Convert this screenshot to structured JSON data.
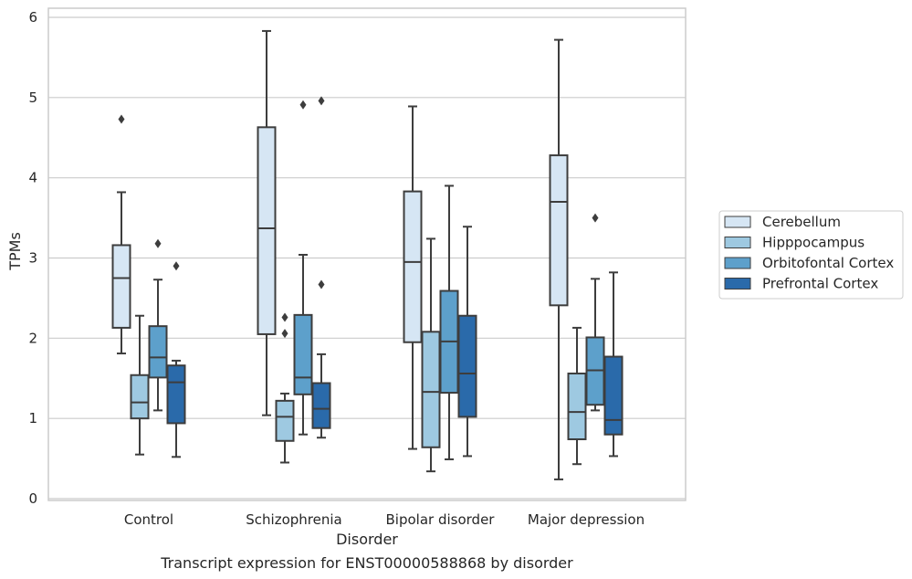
{
  "caption": "Transcript expression for ENST00000588868 by disorder",
  "chart_data": {
    "type": "box",
    "title": "",
    "xlabel": "Disorder",
    "ylabel": "TPMs",
    "ylim": [
      0,
      6.1
    ],
    "yticks": [
      0,
      1,
      2,
      3,
      4,
      5,
      6
    ],
    "grid": true,
    "legend_position": "right",
    "categories": [
      "Control",
      "Schizophrenia",
      "Bipolar disorder",
      "Major depression"
    ],
    "series": [
      {
        "name": "Cerebellum",
        "color": "#d6e6f4",
        "boxes": [
          {
            "whislo": 1.81,
            "q1": 2.13,
            "med": 2.75,
            "q3": 3.16,
            "whishi": 3.82,
            "fliers": [
              4.73
            ]
          },
          {
            "whislo": 1.04,
            "q1": 2.05,
            "med": 3.37,
            "q3": 4.63,
            "whishi": 5.83,
            "fliers": []
          },
          {
            "whislo": 0.62,
            "q1": 1.95,
            "med": 2.95,
            "q3": 3.83,
            "whishi": 4.89,
            "fliers": []
          },
          {
            "whislo": 0.24,
            "q1": 2.41,
            "med": 3.7,
            "q3": 4.28,
            "whishi": 5.72,
            "fliers": []
          }
        ]
      },
      {
        "name": "Hipppocampus",
        "color": "#9ec9e1",
        "boxes": [
          {
            "whislo": 0.55,
            "q1": 1.0,
            "med": 1.2,
            "q3": 1.54,
            "whishi": 2.28,
            "fliers": []
          },
          {
            "whislo": 0.45,
            "q1": 0.72,
            "med": 1.02,
            "q3": 1.22,
            "whishi": 1.31,
            "fliers": [
              2.06,
              2.26
            ]
          },
          {
            "whislo": 0.34,
            "q1": 0.64,
            "med": 1.33,
            "q3": 2.08,
            "whishi": 3.24,
            "fliers": []
          },
          {
            "whislo": 0.43,
            "q1": 0.74,
            "med": 1.08,
            "q3": 1.56,
            "whishi": 2.13,
            "fliers": []
          }
        ]
      },
      {
        "name": "Orbitofontal Cortex",
        "color": "#5da0cb",
        "boxes": [
          {
            "whislo": 1.1,
            "q1": 1.51,
            "med": 1.76,
            "q3": 2.15,
            "whishi": 2.73,
            "fliers": [
              3.18
            ]
          },
          {
            "whislo": 0.8,
            "q1": 1.3,
            "med": 1.51,
            "q3": 2.29,
            "whishi": 3.04,
            "fliers": [
              4.91
            ]
          },
          {
            "whislo": 0.49,
            "q1": 1.32,
            "med": 1.96,
            "q3": 2.59,
            "whishi": 3.9,
            "fliers": []
          },
          {
            "whislo": 1.1,
            "q1": 1.17,
            "med": 1.6,
            "q3": 2.01,
            "whishi": 2.74,
            "fliers": [
              3.5
            ]
          }
        ]
      },
      {
        "name": "Prefrontal Cortex",
        "color": "#2a6aaa",
        "boxes": [
          {
            "whislo": 0.52,
            "q1": 0.94,
            "med": 1.45,
            "q3": 1.66,
            "whishi": 1.72,
            "fliers": [
              2.9
            ]
          },
          {
            "whislo": 0.76,
            "q1": 0.88,
            "med": 1.12,
            "q3": 1.44,
            "whishi": 1.8,
            "fliers": [
              2.67,
              4.96
            ]
          },
          {
            "whislo": 0.53,
            "q1": 1.02,
            "med": 1.56,
            "q3": 2.28,
            "whishi": 3.39,
            "fliers": []
          },
          {
            "whislo": 0.53,
            "q1": 0.8,
            "med": 0.98,
            "q3": 1.77,
            "whishi": 2.82,
            "fliers": []
          }
        ]
      }
    ]
  }
}
